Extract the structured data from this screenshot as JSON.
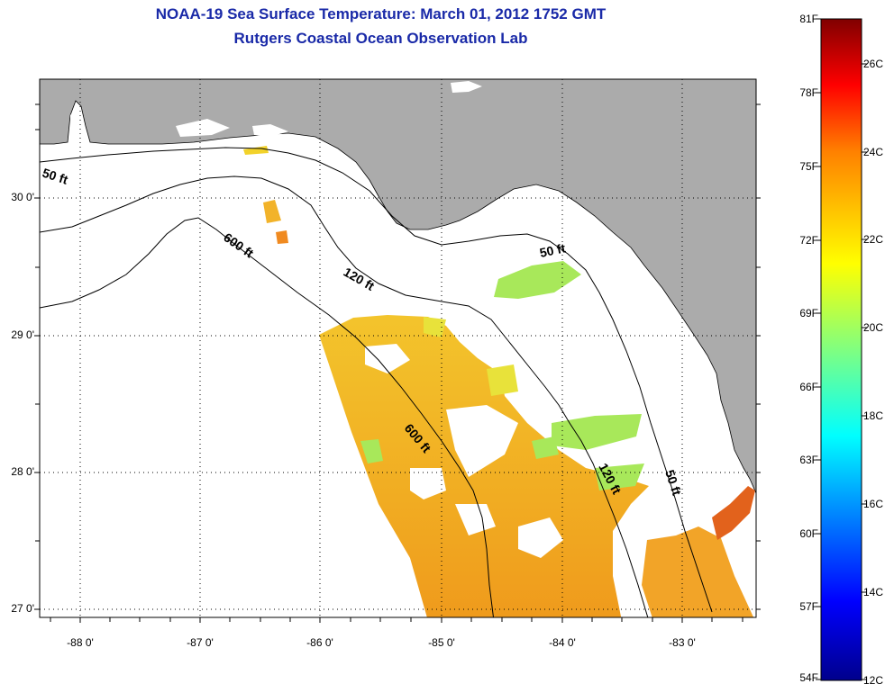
{
  "title": "NOAA-19 Sea Surface Temperature:  March 01, 2012 1752 GMT",
  "subtitle": "Rutgers Coastal Ocean Observation Lab",
  "lat_labels": [
    "30 0'",
    "29 0'",
    "28 0'",
    "27 0'"
  ],
  "lon_labels": [
    "-88 0'",
    "-87 0'",
    "-86 0'",
    "-85 0'",
    "-84 0'",
    "-83 0'"
  ],
  "contours": {
    "fifty_left": "50 ft",
    "six_hundred_upper": "600 ft",
    "one_twenty_upper": "120 ft",
    "fifty_right": "50 ft",
    "six_hundred_lower": "600 ft",
    "one_twenty_lower": "120 ft",
    "fifty_lower": "50 ft"
  },
  "colorbar": {
    "fahrenheit": [
      "81F",
      "78F",
      "75F",
      "72F",
      "69F",
      "66F",
      "63F",
      "60F",
      "57F",
      "54F"
    ],
    "celsius": [
      "26C",
      "24C",
      "22C",
      "20C",
      "18C",
      "16C",
      "14C",
      "12C"
    ]
  },
  "colors": {
    "title": "#1a2aa8",
    "land": "#ababab",
    "sst_warm": "#f0b020",
    "sst_cool": "#a8e85a"
  }
}
